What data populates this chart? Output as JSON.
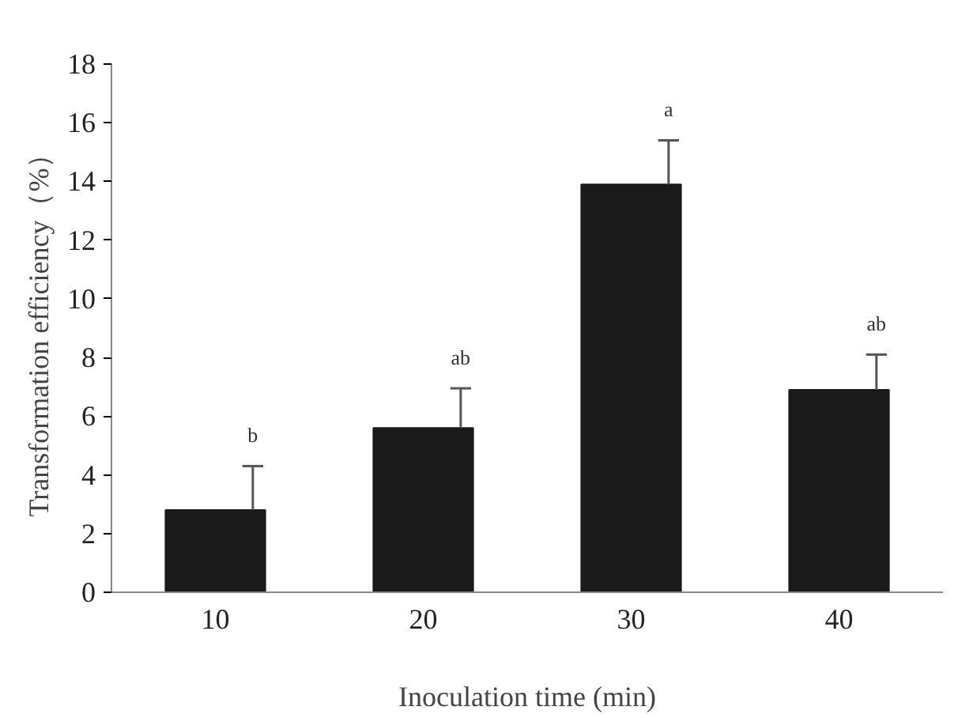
{
  "chart_data": {
    "type": "bar",
    "xlabel": "Inoculation time (min)",
    "ylabel": "Transformation efficiency（%）",
    "categories": [
      "10",
      "20",
      "30",
      "40"
    ],
    "values": [
      2.8,
      5.6,
      13.9,
      6.9
    ],
    "errors": [
      [
        2.8,
        4.3
      ],
      [
        5.6,
        6.95
      ],
      [
        13.9,
        15.4
      ],
      [
        6.9,
        8.1
      ]
    ],
    "color": "#1a1a1a",
    "ylim": [
      0,
      18
    ],
    "yticks": [
      0,
      2,
      4,
      6,
      8,
      10,
      12,
      14,
      16,
      18
    ],
    "annotations": [
      "b",
      "ab",
      "a",
      "ab"
    ],
    "grid": false
  }
}
